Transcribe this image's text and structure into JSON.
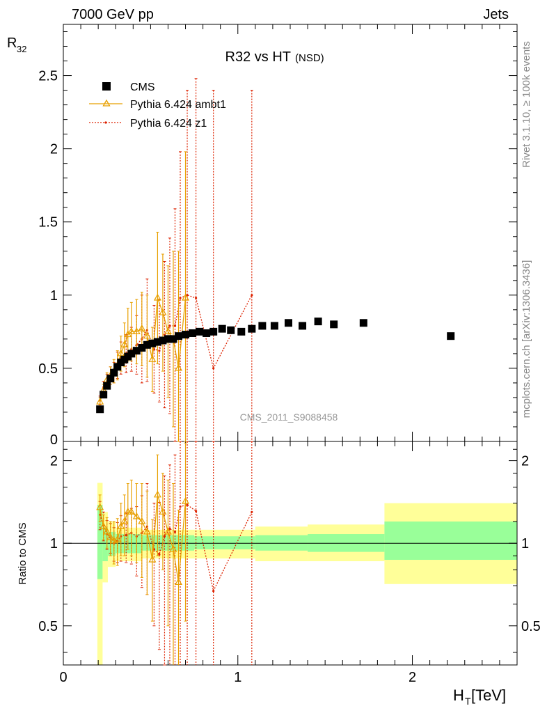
{
  "header": {
    "left": "7000 GeV pp",
    "right": "Jets"
  },
  "side_labels": {
    "rivet": "Rivet 3.1.10, ≥ 100k events",
    "mcplots": "mcplots.cern.ch [arXiv:1306.3436]"
  },
  "watermark": "CMS_2011_S9088458",
  "colors": {
    "data": "#000000",
    "ambt1": "#e8a000",
    "z1": "#dd2200",
    "band_inner": "#99ff99",
    "band_outer": "#ffff99"
  },
  "chart_data": [
    {
      "type": "scatter",
      "title": "R32 vs HT",
      "title_suffix": "(NSD)",
      "ylabel": "R",
      "ylabel_sub": "32",
      "xlim": [
        0,
        2.6
      ],
      "ylim": [
        0,
        2.85
      ],
      "yticks": [
        0.5,
        1,
        1.5,
        2,
        2.5
      ],
      "ytick_labels": [
        "0.5",
        "1",
        "1.5",
        "2",
        "2.5"
      ],
      "first_ytick_label": "0",
      "legend": [
        "CMS",
        "Pythia 6.424 ambt1",
        "Pythia 6.424 z1"
      ],
      "legend_position": "top-left",
      "series": [
        {
          "name": "CMS",
          "marker": "square",
          "x": [
            0.21,
            0.23,
            0.25,
            0.27,
            0.29,
            0.31,
            0.33,
            0.35,
            0.37,
            0.39,
            0.42,
            0.45,
            0.48,
            0.51,
            0.54,
            0.57,
            0.6,
            0.63,
            0.66,
            0.7,
            0.74,
            0.78,
            0.82,
            0.86,
            0.91,
            0.96,
            1.02,
            1.08,
            1.14,
            1.21,
            1.29,
            1.37,
            1.46,
            1.55,
            1.72,
            2.22
          ],
          "y": [
            0.22,
            0.32,
            0.38,
            0.43,
            0.47,
            0.51,
            0.54,
            0.56,
            0.58,
            0.6,
            0.62,
            0.64,
            0.66,
            0.67,
            0.68,
            0.69,
            0.7,
            0.7,
            0.72,
            0.73,
            0.74,
            0.75,
            0.74,
            0.75,
            0.77,
            0.76,
            0.75,
            0.77,
            0.79,
            0.79,
            0.81,
            0.79,
            0.82,
            0.8,
            0.81,
            0.72
          ]
        },
        {
          "name": "Pythia 6.424 ambt1",
          "marker": "triangle",
          "x": [
            0.21,
            0.23,
            0.25,
            0.27,
            0.29,
            0.31,
            0.33,
            0.35,
            0.37,
            0.39,
            0.42,
            0.45,
            0.48,
            0.51,
            0.54,
            0.57,
            0.6,
            0.63,
            0.66,
            0.7
          ],
          "y": [
            0.27,
            0.35,
            0.42,
            0.45,
            0.48,
            0.52,
            0.6,
            0.66,
            0.73,
            0.75,
            0.75,
            0.77,
            0.72,
            0.56,
            0.98,
            0.88,
            0.75,
            0.7,
            0.5,
            0.98
          ],
          "yerr": [
            0.03,
            0.04,
            0.05,
            0.06,
            0.08,
            0.1,
            0.12,
            0.15,
            0.18,
            0.2,
            0.22,
            0.25,
            0.28,
            0.22,
            0.45,
            0.4,
            0.45,
            0.6,
            0.8,
            1.0
          ]
        },
        {
          "name": "Pythia 6.424 z1",
          "marker": "dot",
          "x": [
            0.21,
            0.23,
            0.25,
            0.27,
            0.29,
            0.31,
            0.33,
            0.36,
            0.39,
            0.42,
            0.45,
            0.48,
            0.52,
            0.55,
            0.58,
            0.61,
            0.64,
            0.67,
            0.71,
            0.76,
            0.86,
            1.08
          ],
          "y": [
            0.28,
            0.37,
            0.41,
            0.45,
            0.47,
            0.52,
            0.57,
            0.6,
            0.63,
            0.66,
            0.7,
            0.76,
            0.63,
            0.62,
            0.73,
            0.79,
            0.79,
            0.98,
            1.0,
            0.98,
            0.5,
            1.0
          ],
          "yerr": [
            0.03,
            0.04,
            0.05,
            0.06,
            0.07,
            0.09,
            0.11,
            0.13,
            0.15,
            0.2,
            0.3,
            0.35,
            0.3,
            0.35,
            0.5,
            0.6,
            0.8,
            1.0,
            1.4,
            1.5,
            1.9,
            1.4
          ]
        }
      ]
    },
    {
      "type": "scatter",
      "ylabel": "Ratio to CMS",
      "xlabel": "H",
      "xlabel_sub": "T",
      "xlabel_unit": "[TeV]",
      "xlim": [
        0,
        2.6
      ],
      "ylim": [
        0.36,
        2.35
      ],
      "y_scale": "log",
      "yticks": [
        0.5,
        1,
        2
      ],
      "ytick_labels": [
        "0.5",
        "1",
        "2"
      ],
      "xticks": [
        0,
        1,
        2
      ],
      "xtick_labels": [
        "0",
        "1",
        "2"
      ],
      "bands": [
        {
          "x": [
            0.195,
            0.225
          ],
          "inner": [
            0.74,
            1.38
          ],
          "outer": [
            0.3,
            1.66
          ]
        },
        {
          "x": [
            0.225,
            0.255
          ],
          "inner": [
            0.86,
            1.14
          ],
          "outer": [
            0.72,
            1.3
          ]
        },
        {
          "x": [
            0.255,
            0.3
          ],
          "inner": [
            0.9,
            1.1
          ],
          "outer": [
            0.82,
            1.2
          ]
        },
        {
          "x": [
            0.3,
            0.45
          ],
          "inner": [
            0.92,
            1.08
          ],
          "outer": [
            0.86,
            1.14
          ]
        },
        {
          "x": [
            0.45,
            0.75
          ],
          "inner": [
            0.94,
            1.07
          ],
          "outer": [
            0.88,
            1.12
          ]
        },
        {
          "x": [
            0.75,
            1.1
          ],
          "inner": [
            0.95,
            1.06
          ],
          "outer": [
            0.88,
            1.12
          ]
        },
        {
          "x": [
            1.1,
            1.4
          ],
          "inner": [
            0.94,
            1.07
          ],
          "outer": [
            0.86,
            1.15
          ]
        },
        {
          "x": [
            1.4,
            1.84
          ],
          "inner": [
            0.93,
            1.08
          ],
          "outer": [
            0.86,
            1.17
          ]
        },
        {
          "x": [
            1.84,
            2.6
          ],
          "inner": [
            0.87,
            1.2
          ],
          "outer": [
            0.71,
            1.4
          ]
        }
      ],
      "series": [
        {
          "name": "Pythia 6.424 ambt1",
          "x": [
            0.21,
            0.23,
            0.25,
            0.27,
            0.29,
            0.31,
            0.33,
            0.35,
            0.37,
            0.39,
            0.42,
            0.45,
            0.48,
            0.51,
            0.54,
            0.57,
            0.6,
            0.63,
            0.66,
            0.7
          ],
          "y": [
            1.35,
            1.15,
            1.1,
            1.05,
            1.02,
            1.03,
            1.15,
            1.2,
            1.3,
            1.3,
            1.25,
            1.2,
            1.1,
            0.87,
            1.5,
            1.3,
            1.1,
            0.95,
            0.72,
            1.42
          ],
          "yerr": [
            0.15,
            0.12,
            0.14,
            0.15,
            0.18,
            0.2,
            0.25,
            0.3,
            0.35,
            0.4,
            0.4,
            0.45,
            0.45,
            0.35,
            0.6,
            0.5,
            0.6,
            0.7,
            0.6,
            0.9
          ]
        },
        {
          "name": "Pythia 6.424 z1",
          "x": [
            0.21,
            0.23,
            0.25,
            0.27,
            0.29,
            0.31,
            0.33,
            0.36,
            0.39,
            0.42,
            0.45,
            0.48,
            0.52,
            0.55,
            0.58,
            0.61,
            0.64,
            0.67,
            0.71,
            0.76,
            0.86,
            1.08
          ],
          "y": [
            1.27,
            1.16,
            1.08,
            1.05,
            1.0,
            1.02,
            1.06,
            1.07,
            1.09,
            1.06,
            1.09,
            1.15,
            0.95,
            0.91,
            1.06,
            1.13,
            1.1,
            1.36,
            1.38,
            1.31,
            0.67,
            1.3
          ],
          "yerr": [
            0.15,
            0.14,
            0.13,
            0.13,
            0.14,
            0.17,
            0.2,
            0.22,
            0.25,
            0.3,
            0.4,
            0.5,
            0.45,
            0.5,
            0.7,
            0.8,
            1.0,
            1.3,
            1.6,
            1.7,
            2.0,
            1.6
          ]
        }
      ]
    }
  ]
}
